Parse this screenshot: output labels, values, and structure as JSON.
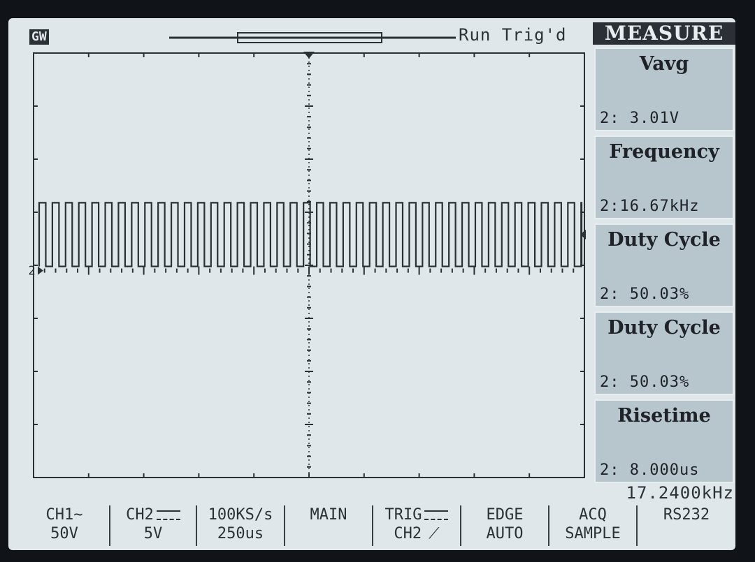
{
  "header": {
    "brand": "GW",
    "status": "Run Trig'd"
  },
  "measure": {
    "title": "MEASURE",
    "items": [
      {
        "name": "Vavg",
        "value": "2: 3.01V"
      },
      {
        "name": "Frequency",
        "value": "2:16.67kHz"
      },
      {
        "name": "Duty Cycle",
        "value": "2: 50.03%"
      },
      {
        "name": "Duty Cycle",
        "value": "2: 50.03%"
      },
      {
        "name": "Risetime",
        "value": "2: 8.000us"
      }
    ]
  },
  "readout": {
    "trigger_frequency": "17.2400kHz",
    "channel_marker": "2"
  },
  "bottom": {
    "ch1": {
      "label": "CH1~",
      "scale": "50V"
    },
    "ch2": {
      "label": "CH2",
      "scale": "5V"
    },
    "timebase": {
      "rate": "100KS/s",
      "scale": "250us"
    },
    "mode": "MAIN",
    "trigger": {
      "label": "TRIG",
      "source": "CH2"
    },
    "trigger_type": {
      "label": "EDGE",
      "mode": "AUTO"
    },
    "acquisition": {
      "label": "ACQ",
      "mode": "SAMPLE"
    },
    "interface": "RS232"
  },
  "waveform": {
    "channel": 2,
    "frequency_hz": 16670,
    "duty_cycle_percent": 50.03,
    "amplitude_divisions": 1.2,
    "time_per_division_s": 0.00025,
    "volts_per_division": 5,
    "icons": {
      "trigger_marker": "down-triangle",
      "level_marker": "left-triangle"
    }
  }
}
